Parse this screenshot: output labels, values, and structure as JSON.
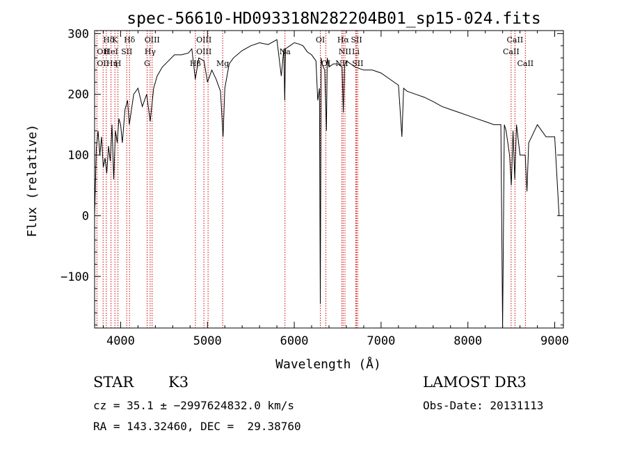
{
  "chart_data": {
    "type": "line",
    "title": "spec-56610-HD093318N282204B01_sp15-024.fits",
    "xlabel": "Wavelength (Å)",
    "ylabel": "Flux (relative)",
    "xlim": [
      3700,
      9100
    ],
    "ylim": [
      -185,
      305
    ],
    "xticks": [
      4000,
      5000,
      6000,
      7000,
      8000,
      9000
    ],
    "yticks": [
      -100,
      0,
      100,
      200,
      300
    ],
    "xtick_labels": [
      "4000",
      "5000",
      "6000",
      "7000",
      "8000",
      "9000"
    ],
    "ytick_labels": [
      "−100",
      "0",
      "100",
      "200",
      "300"
    ],
    "grid": false,
    "series": [
      {
        "x": [
          3700,
          3720,
          3740,
          3760,
          3780,
          3800,
          3820,
          3840,
          3860,
          3880,
          3900,
          3920,
          3940,
          3960,
          3980,
          4000,
          4020,
          4050,
          4080,
          4100,
          4150,
          4200,
          4250,
          4300,
          4340,
          4380,
          4420,
          4480,
          4550,
          4620,
          4700,
          4780,
          4820,
          4860,
          4900,
          4960,
          5000,
          5050,
          5100,
          5150,
          5180,
          5200,
          5250,
          5300,
          5400,
          5500,
          5600,
          5700,
          5800,
          5850,
          5880,
          5890,
          5900,
          5950,
          6000,
          6050,
          6100,
          6150,
          6200,
          6250,
          6270,
          6290,
          6300,
          6310,
          6320,
          6350,
          6370,
          6380,
          6400,
          6450,
          6500,
          6550,
          6565,
          6580,
          6600,
          6650,
          6700,
          6800,
          6900,
          7000,
          7100,
          7200,
          7240,
          7260,
          7300,
          7400,
          7500,
          7600,
          7700,
          7800,
          7900,
          8000,
          8100,
          8200,
          8300,
          8380,
          8400,
          8420,
          8440,
          8480,
          8500,
          8520,
          8540,
          8560,
          8600,
          8660,
          8680,
          8700,
          8800,
          8900,
          9000,
          9050
        ],
        "y": [
          0,
          110,
          140,
          100,
          130,
          80,
          95,
          70,
          115,
          90,
          150,
          60,
          140,
          120,
          160,
          150,
          120,
          175,
          190,
          150,
          200,
          210,
          180,
          200,
          155,
          210,
          230,
          245,
          255,
          265,
          265,
          268,
          275,
          225,
          260,
          255,
          220,
          240,
          225,
          205,
          130,
          210,
          250,
          260,
          272,
          280,
          285,
          282,
          290,
          230,
          275,
          190,
          275,
          280,
          285,
          283,
          280,
          270,
          265,
          255,
          190,
          210,
          -145,
          260,
          250,
          240,
          140,
          260,
          245,
          250,
          250,
          245,
          170,
          248,
          255,
          250,
          245,
          240,
          240,
          235,
          225,
          215,
          130,
          210,
          205,
          200,
          195,
          188,
          180,
          175,
          170,
          165,
          160,
          155,
          150,
          150,
          -185,
          150,
          140,
          100,
          50,
          140,
          60,
          150,
          100,
          100,
          40,
          120,
          150,
          130,
          130,
          0
        ]
      }
    ],
    "line_markers": [
      {
        "label": "Hδ",
        "x": 3798,
        "row": 1,
        "anchor": "start"
      },
      {
        "label": "OII",
        "x": 3727,
        "row": 2,
        "anchor": "start"
      },
      {
        "label": "OII",
        "x": 3727,
        "row": 3,
        "anchor": "start"
      },
      {
        "label": "K",
        "x": 3934,
        "row": 1,
        "anchor": "middle"
      },
      {
        "label": "HeI",
        "x": 3889,
        "row": 2,
        "anchor": "middle"
      },
      {
        "label": "Hη",
        "x": 3835,
        "row": 3,
        "anchor": "start"
      },
      {
        "label": "H",
        "x": 3969,
        "row": 3,
        "anchor": "middle"
      },
      {
        "label": "SII",
        "x": 4070,
        "row": 2,
        "anchor": "middle"
      },
      {
        "label": "Hδ",
        "x": 4102,
        "row": 1,
        "anchor": "middle"
      },
      {
        "label": "OIII",
        "x": 4363,
        "row": 1,
        "anchor": "middle"
      },
      {
        "label": "Hγ",
        "x": 4340,
        "row": 2,
        "anchor": "middle"
      },
      {
        "label": "G",
        "x": 4305,
        "row": 3,
        "anchor": "middle"
      },
      {
        "label": "OIII",
        "x": 4959,
        "row": 1,
        "anchor": "middle"
      },
      {
        "label": "OIII",
        "x": 4959,
        "row": 2,
        "anchor": "middle"
      },
      {
        "label": "Hβ",
        "x": 4861,
        "row": 3,
        "anchor": "middle"
      },
      {
        "label": "Mg",
        "x": 5175,
        "row": 3,
        "anchor": "middle"
      },
      {
        "label": "Na",
        "x": 5893,
        "row": 2,
        "anchor": "middle"
      },
      {
        "label": "OI",
        "x": 6300,
        "row": 1,
        "anchor": "middle"
      },
      {
        "label": "OI",
        "x": 6364,
        "row": 3,
        "anchor": "middle"
      },
      {
        "label": "Hα",
        "x": 6563,
        "row": 1,
        "anchor": "middle"
      },
      {
        "label": "SII",
        "x": 6717,
        "row": 1,
        "anchor": "middle"
      },
      {
        "label": "NII",
        "x": 6584,
        "row": 2,
        "anchor": "middle"
      },
      {
        "label": "Li",
        "x": 6708,
        "row": 2,
        "anchor": "middle"
      },
      {
        "label": "NII",
        "x": 6548,
        "row": 3,
        "anchor": "middle"
      },
      {
        "label": "SII",
        "x": 6731,
        "row": 3,
        "anchor": "middle"
      },
      {
        "label": "CaII",
        "x": 8542,
        "row": 1,
        "anchor": "middle"
      },
      {
        "label": "CaII",
        "x": 8498,
        "row": 2,
        "anchor": "middle"
      },
      {
        "label": "CaII",
        "x": 8662,
        "row": 3,
        "anchor": "middle"
      }
    ],
    "marker_lines_x": [
      3727,
      3798,
      3835,
      3889,
      3934,
      3969,
      4070,
      4102,
      4305,
      4340,
      4363,
      4861,
      4959,
      5007,
      5175,
      5893,
      6300,
      6364,
      6548,
      6563,
      6584,
      6708,
      6717,
      6731,
      8498,
      8542,
      8662
    ],
    "marker_color": "#cc0000",
    "line_color": "#000000"
  },
  "info": {
    "object_class": "STAR",
    "subclass": "K3",
    "survey": "LAMOST DR3",
    "cz_line": "cz = 35.1 ± −2997624832.0 km/s",
    "obs_date_line": "Obs-Date: 20131113",
    "coord_line": "RA = 143.32460, DEC =  29.38760"
  }
}
